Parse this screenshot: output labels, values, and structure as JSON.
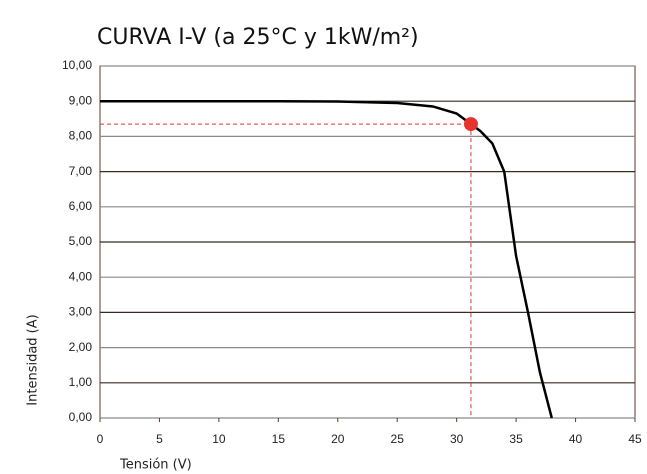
{
  "chart_data": {
    "type": "line",
    "title": "CURVA I-V (a 25°C y 1kW/m²)",
    "x_label": "Tensión (V)",
    "y_label": "Intensidad (A)",
    "x": [
      0,
      5,
      10,
      15,
      20,
      25,
      28,
      30,
      31.2,
      32,
      33,
      34,
      35,
      36,
      37,
      38
    ],
    "series": [
      {
        "color": "#000000",
        "values": [
          9.0,
          9.0,
          9.0,
          9.0,
          8.99,
          8.95,
          8.85,
          8.65,
          8.35,
          8.15,
          7.8,
          7.0,
          4.6,
          3.0,
          1.3,
          0
        ]
      }
    ],
    "mpp": {
      "x": 31.2,
      "y": 8.35,
      "color": "#e8322e"
    },
    "xlim": [
      0,
      45
    ],
    "xticks": [
      0,
      5,
      10,
      15,
      20,
      25,
      30,
      35,
      40,
      45
    ],
    "ylim": [
      0,
      10
    ],
    "yticks": [
      {
        "value": 0,
        "label": "0,00"
      },
      {
        "value": 1,
        "label": "1,00"
      },
      {
        "value": 2,
        "label": "2,00"
      },
      {
        "value": 3,
        "label": "3,00"
      },
      {
        "value": 4,
        "label": "4,00"
      },
      {
        "value": 5,
        "label": "5,00"
      },
      {
        "value": 6,
        "label": "6,00"
      },
      {
        "value": 7,
        "label": "7,00"
      },
      {
        "value": 8,
        "label": "8,00"
      },
      {
        "value": 9,
        "label": "9,00"
      },
      {
        "value": 10,
        "label": "10,00"
      }
    ],
    "grid": true
  }
}
